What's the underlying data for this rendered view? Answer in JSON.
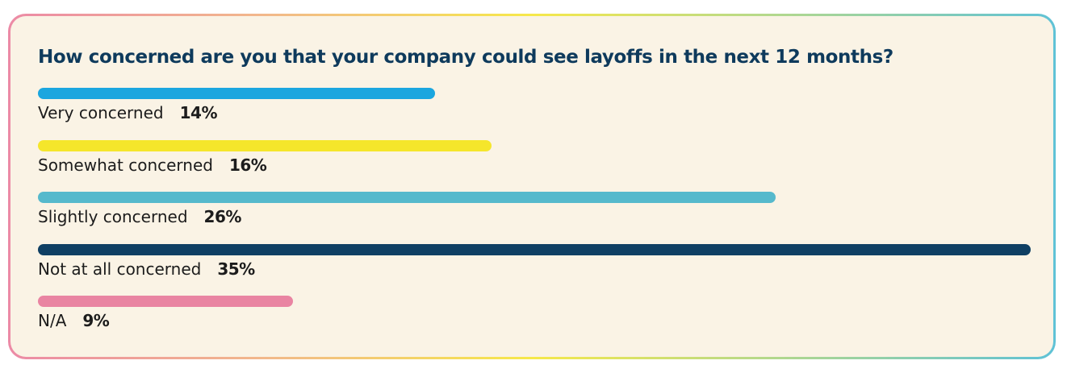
{
  "colors": {
    "background": "#faf3e5",
    "title": "#0e3a5c",
    "text": "#1c1c1c"
  },
  "chart_data": {
    "type": "bar",
    "orientation": "horizontal",
    "title": "How concerned are you that your company could see layoffs in the next 12 months?",
    "categories": [
      "Very concerned",
      "Somewhat concerned",
      "Slightly concerned",
      "Not at all concerned",
      "N/A"
    ],
    "values": [
      14,
      16,
      26,
      35,
      9
    ],
    "value_labels": [
      "14%",
      "16%",
      "26%",
      "35%",
      "9%"
    ],
    "colors": [
      "#1ba6df",
      "#f5e62b",
      "#56b9cc",
      "#0f3f63",
      "#e984a2"
    ],
    "xlim": [
      0,
      35
    ],
    "unit": "%",
    "legend": "none",
    "grid": false
  }
}
